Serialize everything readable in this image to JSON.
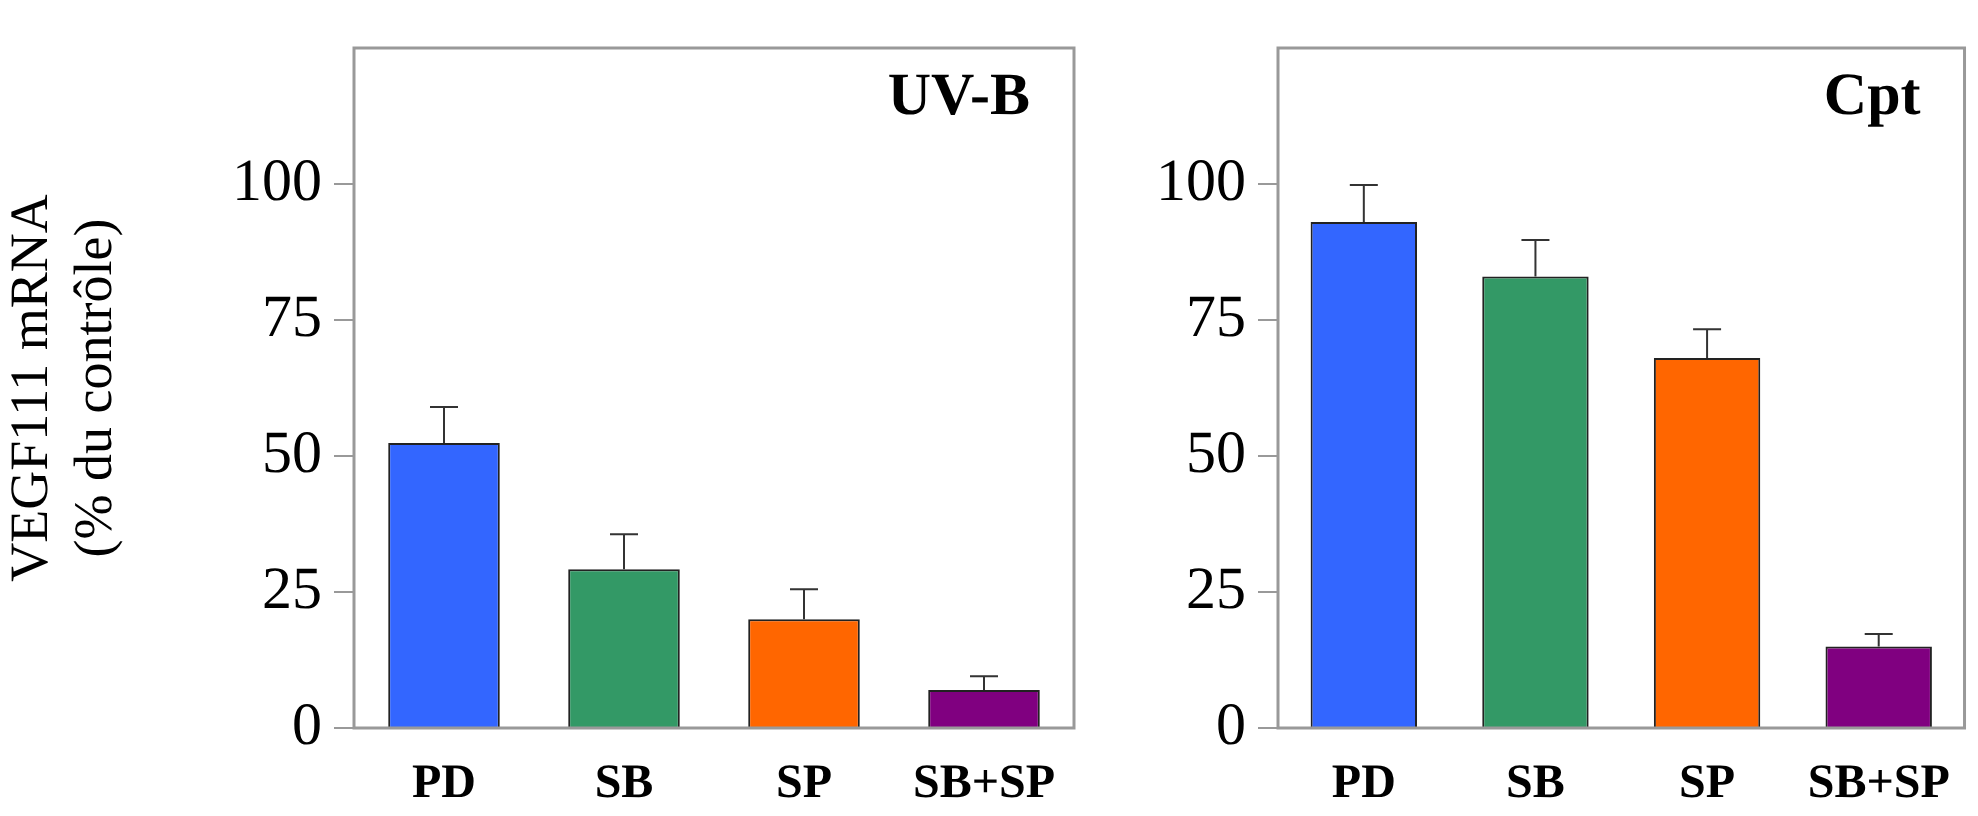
{
  "chart_data": [
    {
      "type": "bar",
      "title": "UV-B",
      "ylabel": "VEGF111 mRNA\n(% du contrôle)",
      "categories": [
        "PD",
        "SB",
        "SP",
        "SB+SP"
      ],
      "values": [
        52.4,
        29.2,
        20,
        7
      ],
      "colors": [
        "#3366ff",
        "#339966",
        "#ff6600",
        "#800080"
      ],
      "errors": [
        [
          52.4,
          59
        ],
        [
          29.2,
          35.6
        ],
        [
          20,
          25.5
        ],
        [
          7,
          9.5
        ]
      ],
      "ylim": [
        0,
        125
      ],
      "yticks": [
        0,
        25,
        50,
        75,
        100
      ],
      "grid": false,
      "legend": false
    },
    {
      "type": "bar",
      "title": "Cpt",
      "categories": [
        "PD",
        "SB",
        "SP",
        "SB+SP"
      ],
      "values": [
        93,
        83,
        68,
        15
      ],
      "colors": [
        "#3366ff",
        "#339966",
        "#ff6600",
        "#800080"
      ],
      "errors": [
        [
          93,
          99.8
        ],
        [
          83,
          89.7
        ],
        [
          68,
          73.3
        ],
        [
          15,
          17.3
        ]
      ],
      "ylim": [
        0,
        125
      ],
      "yticks": [
        0,
        25,
        50,
        75,
        100
      ],
      "grid": false,
      "legend": false
    }
  ]
}
